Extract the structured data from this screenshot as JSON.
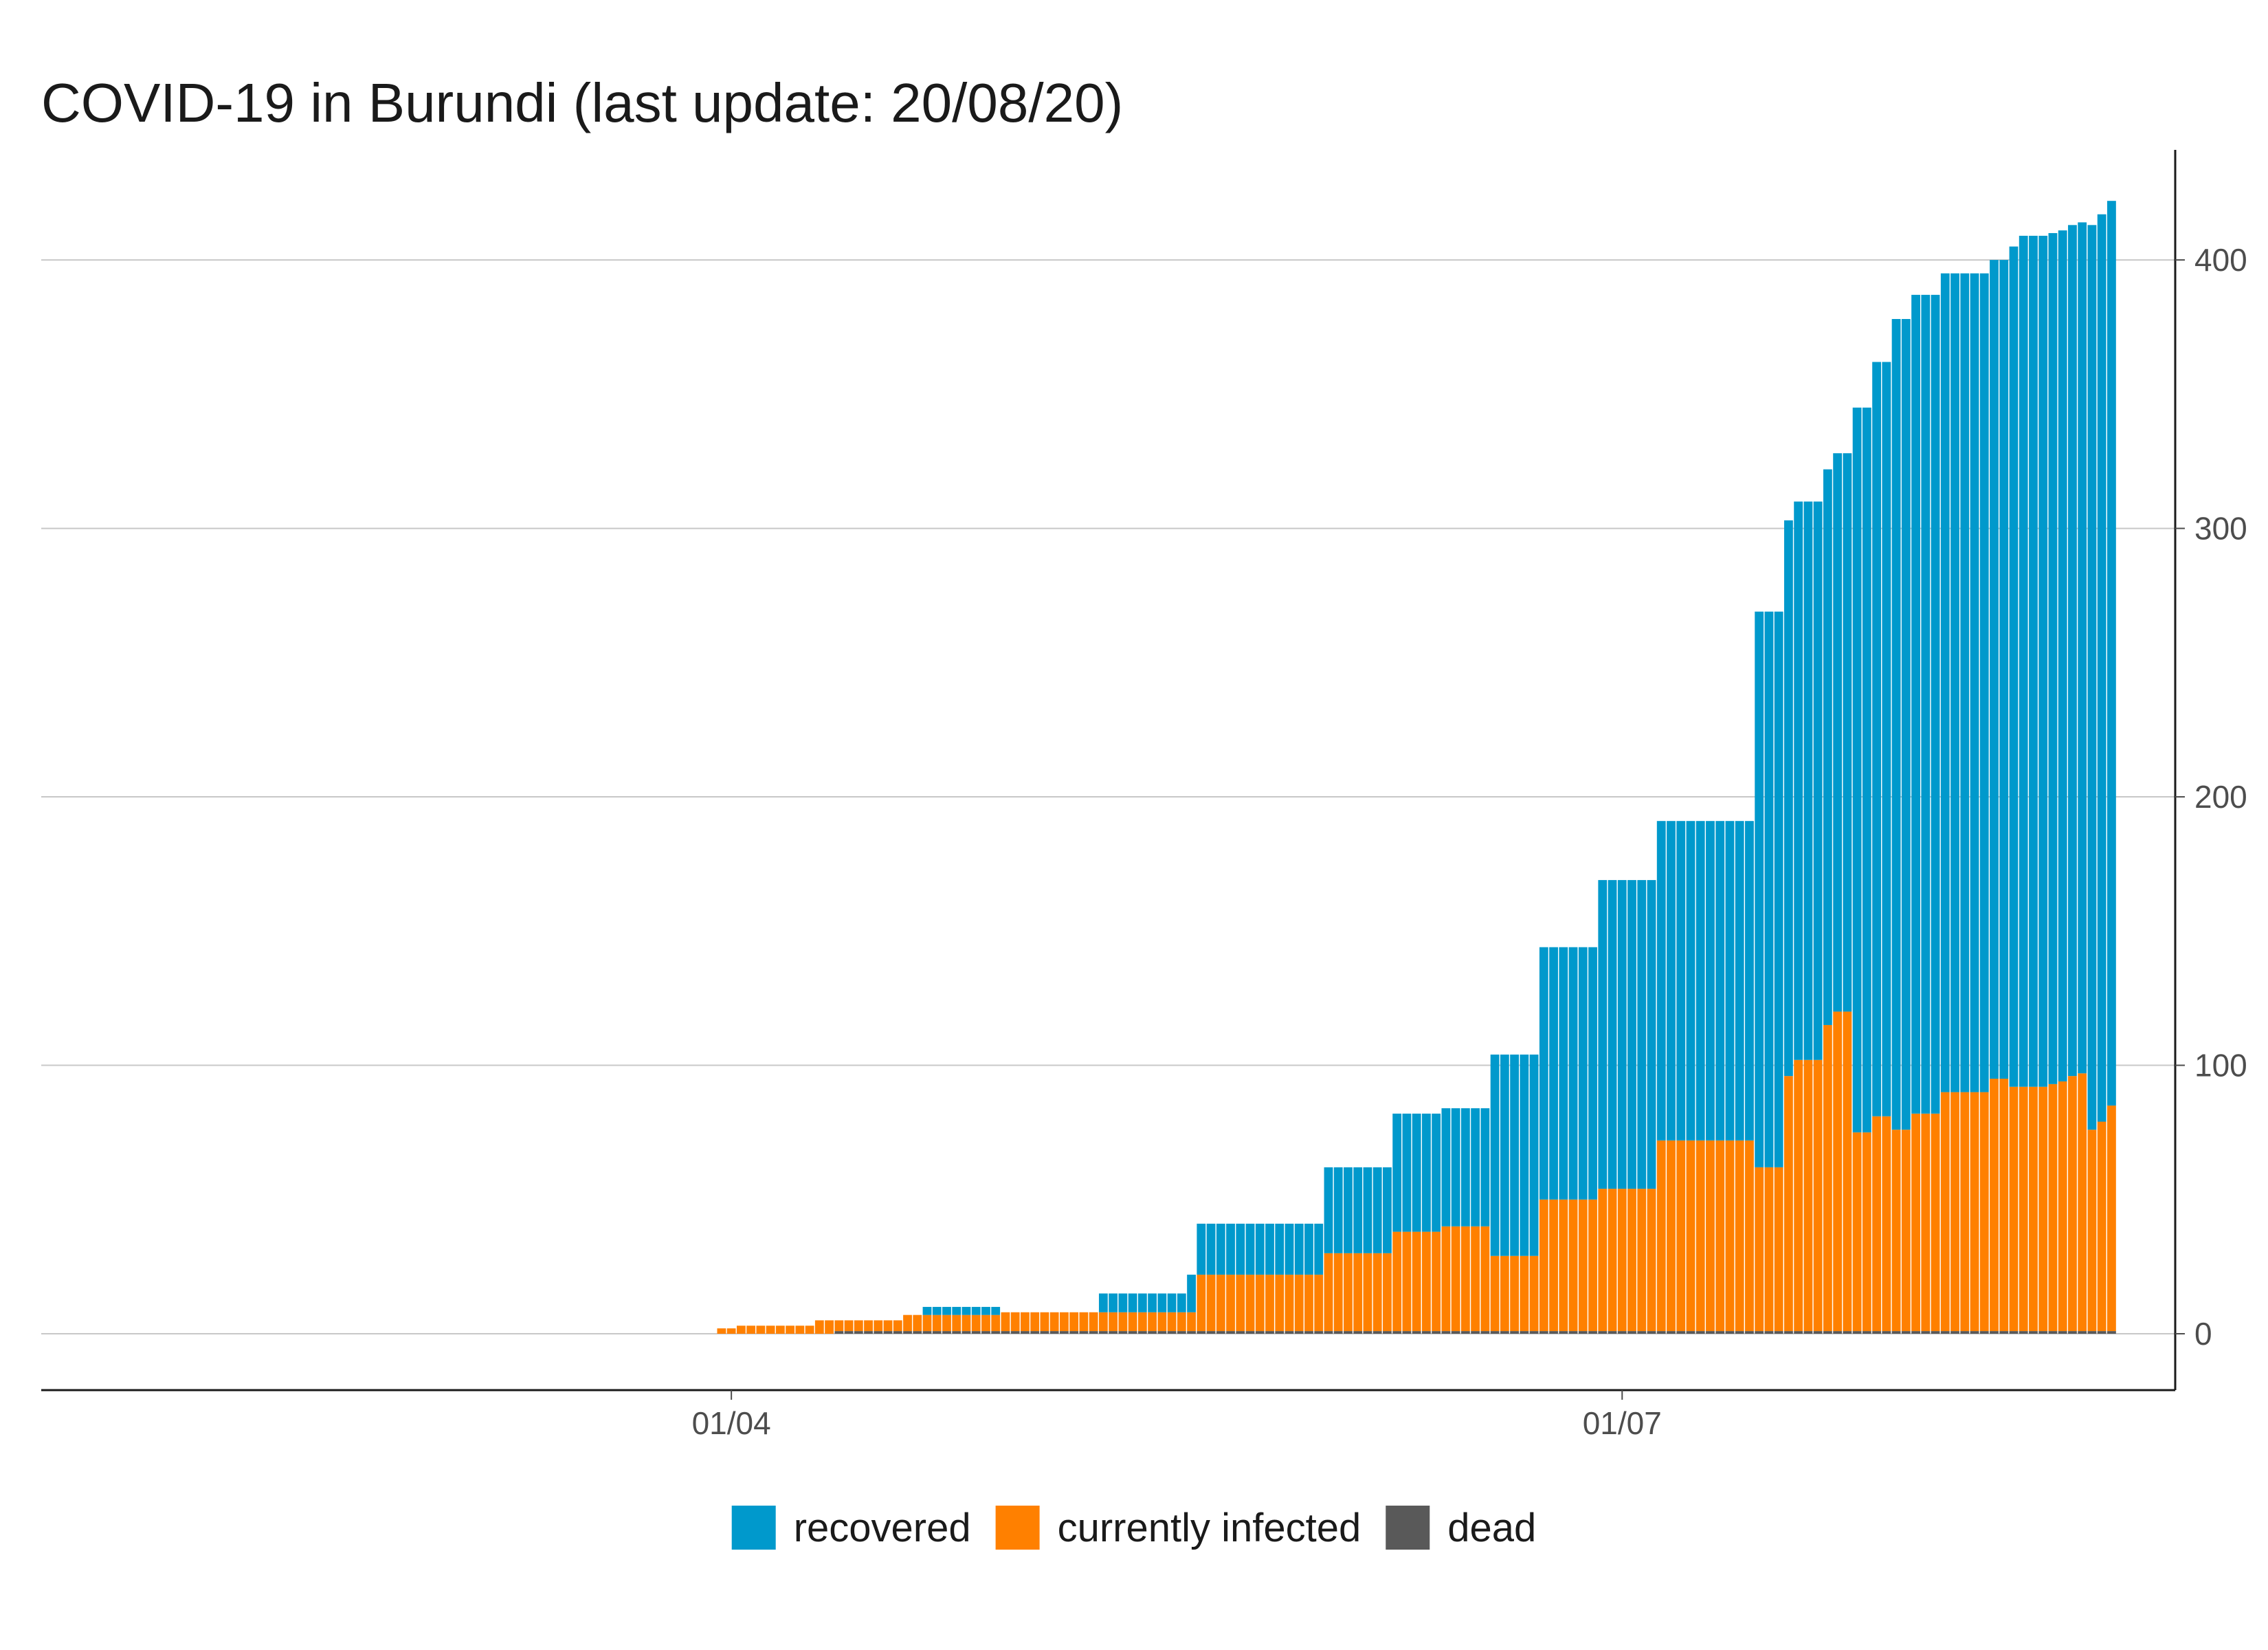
{
  "chart_data": {
    "type": "bar",
    "stacked": true,
    "title": "COVID-19 in Burundi (last update: 20/08/20)",
    "xlabel": "",
    "ylabel": "",
    "ylim": [
      -21,
      441
    ],
    "y_axis_position": "right",
    "yticks": [
      0,
      100,
      200,
      300,
      400
    ],
    "x_start_date": "2020-01-22",
    "x_end_date": "2020-08-20",
    "xticks": [
      {
        "date": "2020-04-01",
        "label": "01/04"
      },
      {
        "date": "2020-07-01",
        "label": "01/07"
      }
    ],
    "grid": {
      "horizontal": true,
      "vertical": false
    },
    "legend_position": "bottom",
    "x": [
      "2020-03-31",
      "2020-04-01",
      "2020-04-02",
      "2020-04-03",
      "2020-04-04",
      "2020-04-05",
      "2020-04-06",
      "2020-04-07",
      "2020-04-08",
      "2020-04-09",
      "2020-04-10",
      "2020-04-11",
      "2020-04-12",
      "2020-04-13",
      "2020-04-14",
      "2020-04-15",
      "2020-04-16",
      "2020-04-17",
      "2020-04-18",
      "2020-04-19",
      "2020-04-20",
      "2020-04-21",
      "2020-04-22",
      "2020-04-23",
      "2020-04-24",
      "2020-04-25",
      "2020-04-26",
      "2020-04-27",
      "2020-04-28",
      "2020-04-29",
      "2020-04-30",
      "2020-05-01",
      "2020-05-02",
      "2020-05-03",
      "2020-05-04",
      "2020-05-05",
      "2020-05-06",
      "2020-05-07",
      "2020-05-08",
      "2020-05-09",
      "2020-05-10",
      "2020-05-11",
      "2020-05-12",
      "2020-05-13",
      "2020-05-14",
      "2020-05-15",
      "2020-05-16",
      "2020-05-17",
      "2020-05-18",
      "2020-05-19",
      "2020-05-20",
      "2020-05-21",
      "2020-05-22",
      "2020-05-23",
      "2020-05-24",
      "2020-05-25",
      "2020-05-26",
      "2020-05-27",
      "2020-05-28",
      "2020-05-29",
      "2020-05-30",
      "2020-05-31",
      "2020-06-01",
      "2020-06-02",
      "2020-06-03",
      "2020-06-04",
      "2020-06-05",
      "2020-06-06",
      "2020-06-07",
      "2020-06-08",
      "2020-06-09",
      "2020-06-10",
      "2020-06-11",
      "2020-06-12",
      "2020-06-13",
      "2020-06-14",
      "2020-06-15",
      "2020-06-16",
      "2020-06-17",
      "2020-06-18",
      "2020-06-19",
      "2020-06-20",
      "2020-06-21",
      "2020-06-22",
      "2020-06-23",
      "2020-06-24",
      "2020-06-25",
      "2020-06-26",
      "2020-06-27",
      "2020-06-28",
      "2020-06-29",
      "2020-06-30",
      "2020-07-01",
      "2020-07-02",
      "2020-07-03",
      "2020-07-04",
      "2020-07-05",
      "2020-07-06",
      "2020-07-07",
      "2020-07-08",
      "2020-07-09",
      "2020-07-10",
      "2020-07-11",
      "2020-07-12",
      "2020-07-13",
      "2020-07-14",
      "2020-07-15",
      "2020-07-16",
      "2020-07-17",
      "2020-07-18",
      "2020-07-19",
      "2020-07-20",
      "2020-07-21",
      "2020-07-22",
      "2020-07-23",
      "2020-07-24",
      "2020-07-25",
      "2020-07-26",
      "2020-07-27",
      "2020-07-28",
      "2020-07-29",
      "2020-07-30",
      "2020-07-31",
      "2020-08-01",
      "2020-08-02",
      "2020-08-03",
      "2020-08-04",
      "2020-08-05",
      "2020-08-06",
      "2020-08-07",
      "2020-08-08",
      "2020-08-09",
      "2020-08-10",
      "2020-08-11",
      "2020-08-12",
      "2020-08-13",
      "2020-08-14",
      "2020-08-15",
      "2020-08-16",
      "2020-08-17",
      "2020-08-18",
      "2020-08-19",
      "2020-08-20"
    ],
    "series": [
      {
        "name": "dead",
        "color": "#595959",
        "values": [
          0,
          0,
          0,
          0,
          0,
          0,
          0,
          0,
          0,
          0,
          0,
          0,
          1,
          1,
          1,
          1,
          1,
          1,
          1,
          1,
          1,
          1,
          1,
          1,
          1,
          1,
          1,
          1,
          1,
          1,
          1,
          1,
          1,
          1,
          1,
          1,
          1,
          1,
          1,
          1,
          1,
          1,
          1,
          1,
          1,
          1,
          1,
          1,
          1,
          1,
          1,
          1,
          1,
          1,
          1,
          1,
          1,
          1,
          1,
          1,
          1,
          1,
          1,
          1,
          1,
          1,
          1,
          1,
          1,
          1,
          1,
          1,
          1,
          1,
          1,
          1,
          1,
          1,
          1,
          1,
          1,
          1,
          1,
          1,
          1,
          1,
          1,
          1,
          1,
          1,
          1,
          1,
          1,
          1,
          1,
          1,
          1,
          1,
          1,
          1,
          1,
          1,
          1,
          1,
          1,
          1,
          1,
          1,
          1,
          1,
          1,
          1,
          1,
          1,
          1,
          1,
          1,
          1,
          1,
          1,
          1,
          1,
          1,
          1,
          1,
          1,
          1,
          1,
          1,
          1,
          1,
          1,
          1,
          1,
          1,
          1,
          1,
          1,
          1,
          1,
          1,
          1,
          1
        ]
      },
      {
        "name": "currently infected",
        "color": "#ff8000",
        "values": [
          2,
          2,
          3,
          3,
          3,
          3,
          3,
          3,
          3,
          3,
          5,
          5,
          4,
          4,
          4,
          4,
          4,
          4,
          4,
          6,
          6,
          6,
          6,
          6,
          6,
          6,
          6,
          6,
          6,
          7,
          7,
          7,
          7,
          7,
          7,
          7,
          7,
          7,
          7,
          7,
          7,
          7,
          7,
          7,
          7,
          7,
          7,
          7,
          7,
          21,
          21,
          21,
          21,
          21,
          21,
          21,
          21,
          21,
          21,
          21,
          21,
          21,
          29,
          29,
          29,
          29,
          29,
          29,
          29,
          37,
          37,
          37,
          37,
          37,
          39,
          39,
          39,
          39,
          39,
          28,
          28,
          28,
          28,
          28,
          49,
          49,
          49,
          49,
          49,
          49,
          53,
          53,
          53,
          53,
          53,
          53,
          71,
          71,
          71,
          71,
          71,
          71,
          71,
          71,
          71,
          71,
          61,
          61,
          61,
          95,
          101,
          101,
          101,
          114,
          119,
          119,
          74,
          74,
          80,
          80,
          75,
          75,
          81,
          81,
          81,
          89,
          89,
          89,
          89,
          89,
          94,
          94,
          91,
          91,
          91,
          91,
          92,
          93,
          95,
          96,
          75,
          78,
          84
        ]
      },
      {
        "name": "recovered",
        "color": "#0099cc",
        "values": [
          0,
          0,
          0,
          0,
          0,
          0,
          0,
          0,
          0,
          0,
          0,
          0,
          0,
          0,
          0,
          0,
          0,
          0,
          0,
          0,
          0,
          3,
          3,
          3,
          3,
          3,
          3,
          3,
          3,
          0,
          0,
          0,
          0,
          0,
          0,
          0,
          0,
          0,
          0,
          7,
          7,
          7,
          7,
          7,
          7,
          7,
          7,
          7,
          14,
          19,
          19,
          19,
          19,
          19,
          19,
          19,
          19,
          19,
          19,
          19,
          19,
          19,
          32,
          32,
          32,
          32,
          32,
          32,
          32,
          44,
          44,
          44,
          44,
          44,
          44,
          44,
          44,
          44,
          44,
          75,
          75,
          75,
          75,
          75,
          94,
          94,
          94,
          94,
          94,
          94,
          115,
          115,
          115,
          115,
          115,
          115,
          119,
          119,
          119,
          119,
          119,
          119,
          119,
          119,
          119,
          119,
          207,
          207,
          207,
          207,
          208,
          208,
          208,
          207,
          208,
          208,
          270,
          270,
          281,
          281,
          302,
          302,
          305,
          305,
          305,
          305,
          305,
          305,
          305,
          305,
          305,
          305,
          313,
          317,
          317,
          317,
          317,
          317,
          317,
          317,
          337,
          338,
          337
        ]
      }
    ],
    "legend": [
      {
        "label": "recovered",
        "color": "#0099cc"
      },
      {
        "label": "currently infected",
        "color": "#ff8000"
      },
      {
        "label": "dead",
        "color": "#595959"
      }
    ]
  }
}
